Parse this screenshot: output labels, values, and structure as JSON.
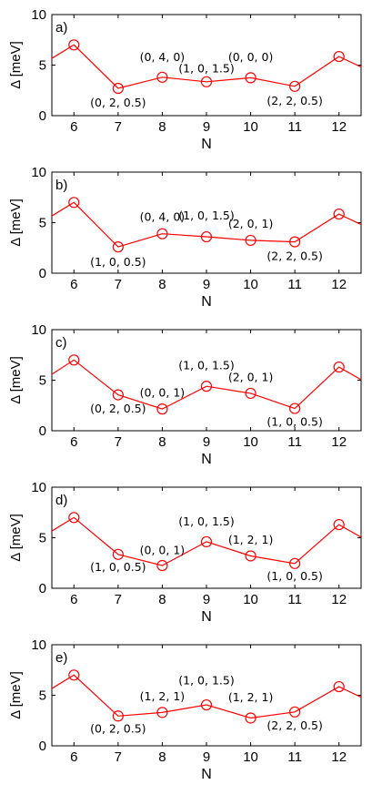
{
  "chart_data": [
    {
      "type": "line",
      "panel_label": "a)",
      "xlabel": "N",
      "ylabel": "Δ [meV]",
      "xlim": [
        5.5,
        12.5
      ],
      "ylim": [
        0,
        10
      ],
      "xticks": [
        6,
        7,
        8,
        9,
        10,
        11,
        12
      ],
      "yticks": [
        0,
        5,
        10
      ],
      "x": [
        6,
        7,
        8,
        9,
        10,
        11,
        12
      ],
      "values": [
        7.0,
        2.7,
        3.8,
        3.35,
        3.75,
        2.9,
        5.85
      ],
      "edge_left": 5.4,
      "edge_right": 4.6,
      "annotations": [
        {
          "text": "(0, 2, 0.5)",
          "x": 7,
          "y": 0.9
        },
        {
          "text": "(0, 4, 0)",
          "x": 8,
          "y": 5.4
        },
        {
          "text": "(1, 0, 1.5)",
          "x": 9,
          "y": 4.3
        },
        {
          "text": "(0, 0, 0)",
          "x": 10,
          "y": 5.4
        },
        {
          "text": "(2, 2, 0.5)",
          "x": 11,
          "y": 1.1
        }
      ],
      "grid": false,
      "color": "#ff0000"
    },
    {
      "type": "line",
      "panel_label": "b)",
      "xlabel": "N",
      "ylabel": "Δ [meV]",
      "xlim": [
        5.5,
        12.5
      ],
      "ylim": [
        0,
        10
      ],
      "xticks": [
        6,
        7,
        8,
        9,
        10,
        11,
        12
      ],
      "yticks": [
        0,
        5,
        10
      ],
      "x": [
        6,
        7,
        8,
        9,
        10,
        11,
        12
      ],
      "values": [
        7.0,
        2.6,
        3.9,
        3.6,
        3.25,
        3.1,
        5.85
      ],
      "edge_left": 5.4,
      "edge_right": 4.6,
      "annotations": [
        {
          "text": "(1, 0, 0.5)",
          "x": 7,
          "y": 0.7
        },
        {
          "text": "(0, 4, 0)",
          "x": 8,
          "y": 5.2
        },
        {
          "text": "(1, 0, 1.5)",
          "x": 9,
          "y": 5.3
        },
        {
          "text": "(2, 0, 1)",
          "x": 10,
          "y": 4.5
        },
        {
          "text": "(2, 2, 0.5)",
          "x": 11,
          "y": 1.3
        }
      ],
      "grid": false,
      "color": "#ff0000"
    },
    {
      "type": "line",
      "panel_label": "c)",
      "xlabel": "N",
      "ylabel": "Δ [meV]",
      "xlim": [
        5.5,
        12.5
      ],
      "ylim": [
        0,
        10
      ],
      "xticks": [
        6,
        7,
        8,
        9,
        10,
        11,
        12
      ],
      "yticks": [
        0,
        5,
        10
      ],
      "x": [
        6,
        7,
        8,
        9,
        10,
        11,
        12
      ],
      "values": [
        7.0,
        3.55,
        2.15,
        4.4,
        3.7,
        2.2,
        6.3
      ],
      "edge_left": 5.3,
      "edge_right": 4.8,
      "annotations": [
        {
          "text": "(0, 2, 0.5)",
          "x": 7,
          "y": 1.8
        },
        {
          "text": "(0, 0, 1)",
          "x": 8,
          "y": 3.4
        },
        {
          "text": "(1, 0, 1.5)",
          "x": 9,
          "y": 6.1
        },
        {
          "text": "(2, 0, 1)",
          "x": 10,
          "y": 4.9
        },
        {
          "text": "(1, 0, 0.5)",
          "x": 11,
          "y": 0.5
        }
      ],
      "grid": false,
      "color": "#ff0000"
    },
    {
      "type": "line",
      "panel_label": "d)",
      "xlabel": "N",
      "ylabel": "Δ [meV]",
      "xlim": [
        5.5,
        12.5
      ],
      "ylim": [
        0,
        10
      ],
      "xticks": [
        6,
        7,
        8,
        9,
        10,
        11,
        12
      ],
      "yticks": [
        0,
        5,
        10
      ],
      "x": [
        6,
        7,
        8,
        9,
        10,
        11,
        12
      ],
      "values": [
        7.0,
        3.35,
        2.25,
        4.6,
        3.2,
        2.45,
        6.3
      ],
      "edge_left": 5.4,
      "edge_right": 4.8,
      "annotations": [
        {
          "text": "(1, 0, 0.5)",
          "x": 7,
          "y": 1.7
        },
        {
          "text": "(0, 0, 1)",
          "x": 8,
          "y": 3.4
        },
        {
          "text": "(1, 0, 1.5)",
          "x": 9,
          "y": 6.2
        },
        {
          "text": "(1, 2, 1)",
          "x": 10,
          "y": 4.4
        },
        {
          "text": "(1, 0, 0.5)",
          "x": 11,
          "y": 0.8
        }
      ],
      "grid": false,
      "color": "#ff0000"
    },
    {
      "type": "line",
      "panel_label": "e)",
      "xlabel": "N",
      "ylabel": "Δ [meV]",
      "xlim": [
        5.5,
        12.5
      ],
      "ylim": [
        0,
        10
      ],
      "xticks": [
        6,
        7,
        8,
        9,
        10,
        11,
        12
      ],
      "yticks": [
        0,
        5,
        10
      ],
      "x": [
        6,
        7,
        8,
        9,
        10,
        11,
        12
      ],
      "values": [
        7.0,
        2.95,
        3.3,
        4.05,
        2.75,
        3.35,
        5.85
      ],
      "edge_left": 5.4,
      "edge_right": 4.6,
      "annotations": [
        {
          "text": "(0, 2, 0.5)",
          "x": 7,
          "y": 1.3
        },
        {
          "text": "(1, 2, 1)",
          "x": 8,
          "y": 4.5
        },
        {
          "text": "(1, 0, 1.5)",
          "x": 9,
          "y": 6.1
        },
        {
          "text": "(1, 2, 1)",
          "x": 10,
          "y": 4.4
        },
        {
          "text": "(2, 2, 0.5)",
          "x": 11,
          "y": 1.6
        }
      ],
      "grid": false,
      "color": "#ff0000"
    }
  ]
}
